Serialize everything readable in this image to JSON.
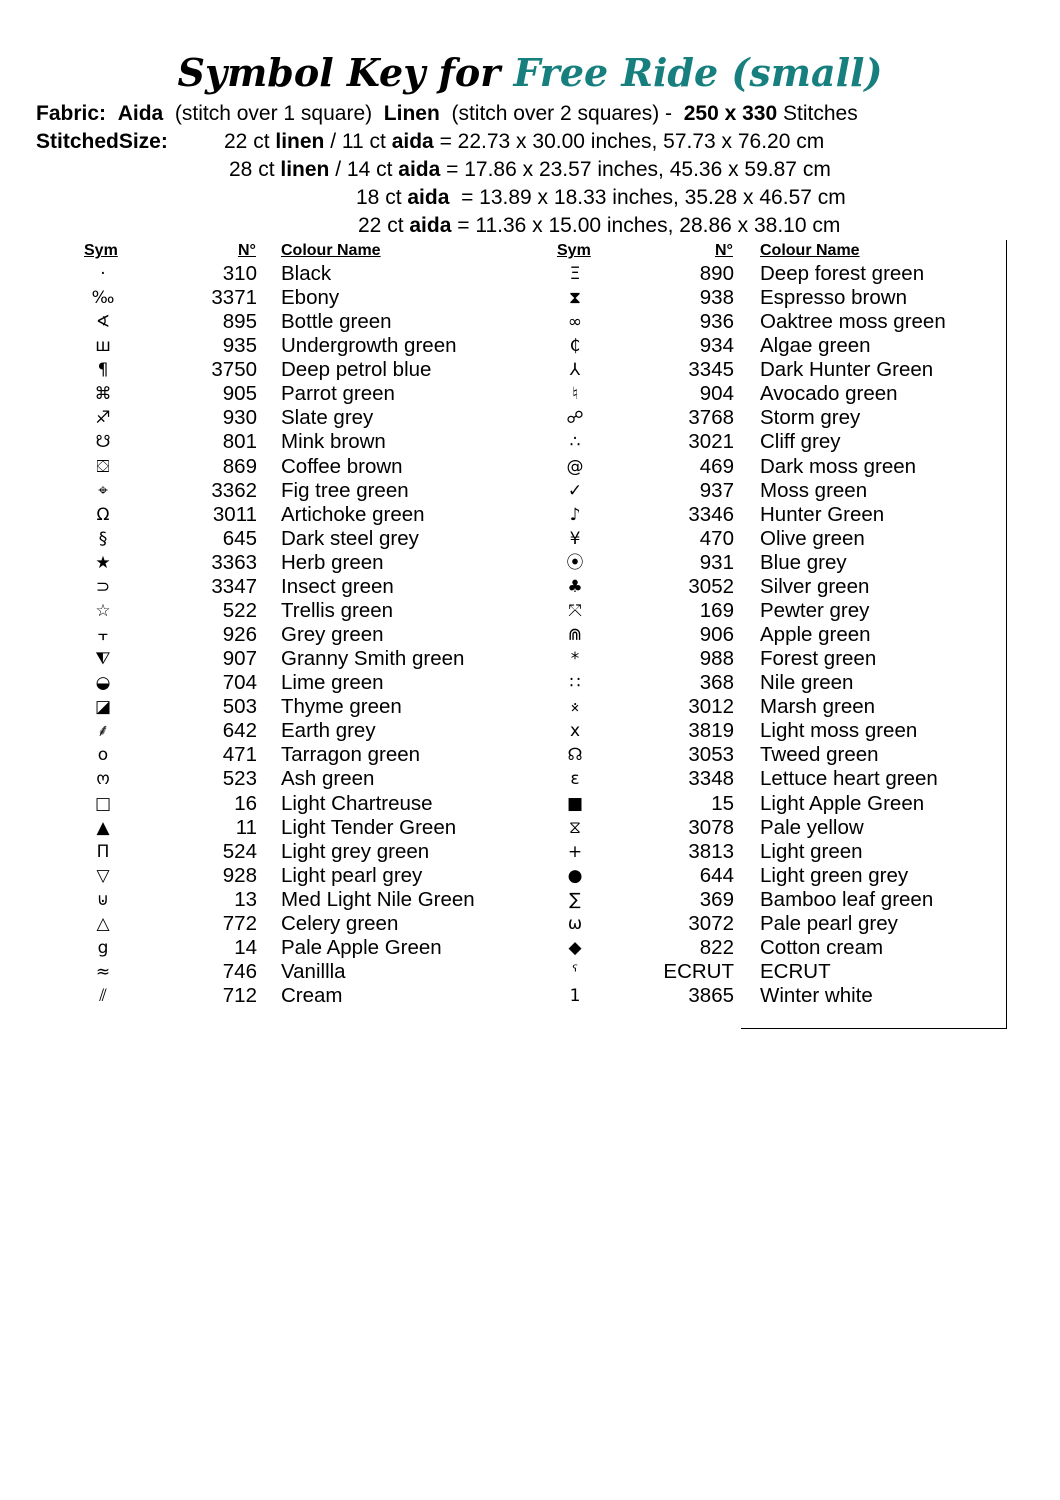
{
  "title": {
    "prefix": "Symbol Key for",
    "name": "Free Ride (small)",
    "accent_color": "#17807e"
  },
  "fabric": {
    "label": "Fabric:",
    "aida": "Aida",
    "aida_note": "(stitch over 1 square)",
    "linen": "Linen",
    "linen_note": "(stitch over 2 squares) -",
    "size": "250 x 330",
    "size_unit": "Stitches"
  },
  "stitched_size": {
    "label": "StitchedSize:",
    "lines": [
      {
        "a": "22 ct ",
        "b": "linen",
        "c": " / 11 ct ",
        "d": "aida",
        "e": " = 22.73 x 30.00 inches, 57.73 x 76.20 cm"
      },
      {
        "a": "28 ct ",
        "b": "linen",
        "c": " / 14 ct ",
        "d": "aida",
        "e": " = 17.86 x 23.57 inches, 45.36 x 59.87 cm"
      },
      {
        "a": "18 ct ",
        "b": "aida",
        "c": "",
        "d": "",
        "e": "  = 13.89 x 18.33 inches, 35.28 x 46.57 cm"
      },
      {
        "a": "22 ct ",
        "b": "aida",
        "c": "",
        "d": "",
        "e": " = 11.36 x 15.00 inches, 28.86 x 38.10 cm"
      }
    ]
  },
  "headers": {
    "sym": "Sym",
    "num": "N°",
    "name": "Colour Name"
  },
  "left": [
    [
      "·",
      "310",
      "Black"
    ],
    [
      "‰",
      "3371",
      "Ebony"
    ],
    [
      "∢",
      "895",
      "Bottle green"
    ],
    [
      "ш",
      "935",
      "Undergrowth green"
    ],
    [
      "¶",
      "3750",
      "Deep petrol blue"
    ],
    [
      "⌘",
      "905",
      "Parrot green"
    ],
    [
      "♐",
      "930",
      "Slate grey"
    ],
    [
      "☋",
      "801",
      "Mink brown"
    ],
    [
      "⛋",
      "869",
      "Coffee brown"
    ],
    [
      "⌖",
      "3362",
      "Fig tree green"
    ],
    [
      "Ω",
      "3011",
      "Artichoke green"
    ],
    [
      "§",
      "645",
      "Dark steel grey"
    ],
    [
      "★",
      "3363",
      "Herb green"
    ],
    [
      "⊃",
      "3347",
      "Insect green"
    ],
    [
      "☆",
      "522",
      "Trellis green"
    ],
    [
      "⫟",
      "926",
      "Grey green"
    ],
    [
      "⧨",
      "907",
      "Granny Smith green"
    ],
    [
      "◒",
      "704",
      "Lime green"
    ],
    [
      "◪",
      "503",
      "Thyme green"
    ],
    [
      "⸙",
      "642",
      "Earth grey"
    ],
    [
      "o",
      "471",
      "Tarragon green"
    ],
    [
      "ო",
      "523",
      "Ash green"
    ],
    [
      "□",
      "16",
      "Light Chartreuse"
    ],
    [
      "▲",
      "11",
      "Light Tender Green"
    ],
    [
      "Π",
      "524",
      "Light grey green"
    ],
    [
      "▽",
      "928",
      "Light pearl grey"
    ],
    [
      "⊍",
      "13",
      "Med Light Nile Green"
    ],
    [
      "△",
      "772",
      "Celery green"
    ],
    [
      "g",
      "14",
      "Pale Apple Green"
    ],
    [
      "≈",
      "746",
      "Vanillla"
    ],
    [
      "⫽",
      "712",
      "Cream"
    ]
  ],
  "right": [
    [
      "Ξ",
      "890",
      "Deep forest green"
    ],
    [
      "⧗",
      "938",
      "Espresso brown"
    ],
    [
      "∞",
      "936",
      "Oaktree moss green"
    ],
    [
      "₵",
      "934",
      "Algae green"
    ],
    [
      "⅄",
      "3345",
      "Dark Hunter Green"
    ],
    [
      "♮",
      "904",
      "Avocado green"
    ],
    [
      "☍",
      "3768",
      "Storm grey"
    ],
    [
      "∴",
      "3021",
      "Cliff grey"
    ],
    [
      "@",
      "469",
      "Dark moss green"
    ],
    [
      "✓",
      "937",
      "Moss green"
    ],
    [
      "♪",
      "3346",
      "Hunter Green"
    ],
    [
      "¥",
      "470",
      "Olive green"
    ],
    [
      "⦿",
      "931",
      "Blue grey"
    ],
    [
      "♣",
      "3052",
      "Silver green"
    ],
    [
      "⤧",
      "169",
      "Pewter grey"
    ],
    [
      "⋒",
      "906",
      "Apple green"
    ],
    [
      "*",
      "988",
      "Forest green"
    ],
    [
      "∷",
      "368",
      "Nile green"
    ],
    [
      "⨰",
      "3012",
      "Marsh green"
    ],
    [
      "x",
      "3819",
      "Light moss green"
    ],
    [
      "☊",
      "3053",
      "Tweed green"
    ],
    [
      "ε",
      "3348",
      "Lettuce heart green"
    ],
    [
      "■",
      "15",
      "Light Apple Green"
    ],
    [
      "⧖",
      "3078",
      "Pale yellow"
    ],
    [
      "+",
      "3813",
      "Light green"
    ],
    [
      "●",
      "644",
      "Light green grey"
    ],
    [
      "∑",
      "369",
      "Bamboo leaf green"
    ],
    [
      "ω",
      "3072",
      "Pale pearl grey"
    ],
    [
      "◆",
      "822",
      "Cotton cream"
    ],
    [
      "ˁ",
      "ECRUT",
      "ECRUT"
    ],
    [
      "1",
      "3865",
      "Winter white"
    ]
  ]
}
